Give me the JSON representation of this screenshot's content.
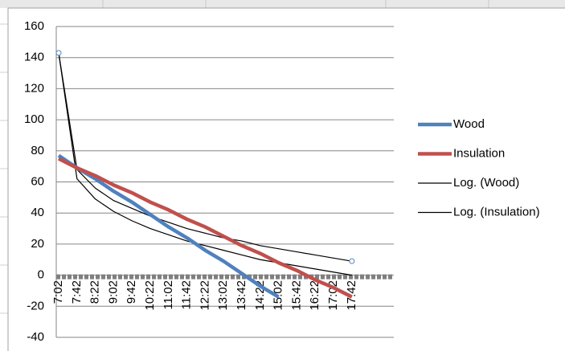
{
  "chart_data": {
    "type": "line",
    "categories": [
      "7:02",
      "7:42",
      "8:22",
      "9:02",
      "9:42",
      "10:22",
      "11:02",
      "11:42",
      "12:22",
      "13:02",
      "13:42",
      "14:22",
      "15:02",
      "15:42",
      "16:22",
      "17:02",
      "17:42"
    ],
    "series": [
      {
        "name": "Wood",
        "color": "#4f81bd",
        "values": [
          77,
          69,
          62,
          54,
          47,
          39,
          31,
          24,
          16,
          9,
          1,
          -7,
          -14,
          null,
          null,
          null,
          null
        ]
      },
      {
        "name": "Insulation",
        "color": "#c0504d",
        "values": [
          75,
          69,
          64,
          58,
          53,
          47,
          42,
          36,
          31,
          25,
          19,
          14,
          8,
          3,
          -3,
          -8,
          -14
        ]
      }
    ],
    "trendlines": [
      {
        "name": "Log. (Wood)",
        "color": "#000000",
        "values": [
          143,
          62,
          49,
          41,
          35,
          30,
          26,
          22,
          19,
          16,
          13,
          10,
          8,
          6,
          4,
          2,
          0
        ]
      },
      {
        "name": "Log. (Insulation)",
        "color": "#000000",
        "values": [
          143,
          68,
          56,
          48,
          43,
          38,
          34,
          30,
          27,
          24,
          22,
          19,
          17,
          15,
          13,
          11,
          9
        ]
      }
    ],
    "ylim": [
      -40,
      160
    ],
    "yticks": [
      -40,
      -20,
      0,
      20,
      40,
      60,
      80,
      100,
      120,
      140,
      160
    ],
    "grid": true,
    "legend": "right"
  }
}
